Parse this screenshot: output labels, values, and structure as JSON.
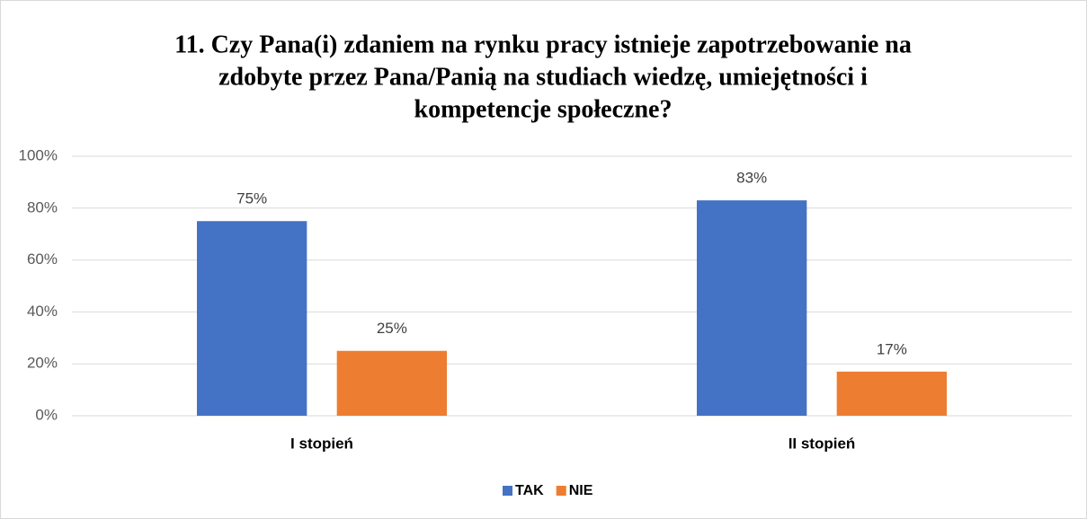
{
  "chart_data": {
    "type": "bar",
    "title": [
      "11. Czy Pana(i) zdaniem na rynku pracy istnieje zapotrzebowanie na",
      "zdobyte przez Pana/Panią na studiach wiedzę, umiejętności i",
      "kompetencje społeczne?"
    ],
    "categories": [
      "I stopień",
      "II stopień"
    ],
    "series": [
      {
        "name": "TAK",
        "color": "#4472c4",
        "values": [
          75,
          83
        ],
        "value_labels": [
          "75%",
          "83%"
        ]
      },
      {
        "name": "NIE",
        "color": "#ed7d31",
        "values": [
          25,
          17
        ],
        "value_labels": [
          "25%",
          "17%"
        ]
      }
    ],
    "ylim": [
      0,
      100
    ],
    "yticks": [
      {
        "value": 0,
        "label": "0%"
      },
      {
        "value": 20,
        "label": "20%"
      },
      {
        "value": 40,
        "label": "40%"
      },
      {
        "value": 60,
        "label": "60%"
      },
      {
        "value": 80,
        "label": "80%"
      },
      {
        "value": 100,
        "label": "100%"
      }
    ],
    "grid": true,
    "legend": "bottom"
  }
}
